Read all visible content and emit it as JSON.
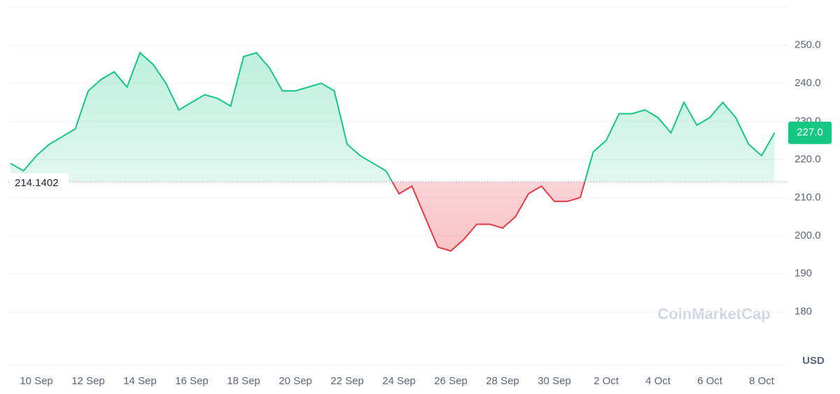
{
  "chart_data": {
    "type": "line",
    "categories": [
      null,
      null,
      "10 Sep",
      null,
      null,
      null,
      "12 Sep",
      null,
      null,
      null,
      "14 Sep",
      null,
      null,
      null,
      "16 Sep",
      null,
      null,
      null,
      "18 Sep",
      null,
      null,
      null,
      "20 Sep",
      null,
      null,
      null,
      "22 Sep",
      null,
      null,
      null,
      "24 Sep",
      null,
      null,
      null,
      "26 Sep",
      null,
      null,
      null,
      "28 Sep",
      null,
      null,
      null,
      "30 Sep",
      null,
      null,
      null,
      "2 Oct",
      null,
      null,
      null,
      "4 Oct",
      null,
      null,
      null,
      "6 Oct",
      null,
      null,
      null,
      "8 Oct",
      null
    ],
    "values": [
      219,
      217,
      221,
      224,
      226,
      228,
      238,
      241,
      243,
      239,
      248,
      245,
      240,
      233,
      235,
      237,
      236,
      234,
      247,
      248,
      244,
      238,
      238,
      239,
      240,
      238,
      224,
      221,
      219,
      217,
      211,
      213,
      205,
      197,
      196,
      199,
      203,
      203,
      202,
      205,
      211,
      213,
      209,
      209,
      210,
      222,
      225,
      232,
      232,
      233,
      231,
      227,
      235,
      229,
      231,
      235,
      231,
      224,
      221,
      227
    ],
    "color_up": "#16c784",
    "color_down": "#ea3943",
    "baseline": 214.1402,
    "last_price": {
      "value": 227,
      "label": "227.0"
    },
    "ylim": [
      166,
      260
    ],
    "yticks": [
      {
        "value": 180,
        "label": "180"
      },
      {
        "value": 190,
        "label": "190"
      },
      {
        "value": 200,
        "label": "200.0"
      },
      {
        "value": 210,
        "label": "210.0"
      },
      {
        "value": 220,
        "label": "220.0"
      },
      {
        "value": 230,
        "label": "230.0"
      },
      {
        "value": 240,
        "label": "240.0"
      },
      {
        "value": 250,
        "label": "250.0"
      }
    ],
    "grid": true,
    "currency": "USD",
    "watermark": "CoinMarketCap"
  }
}
